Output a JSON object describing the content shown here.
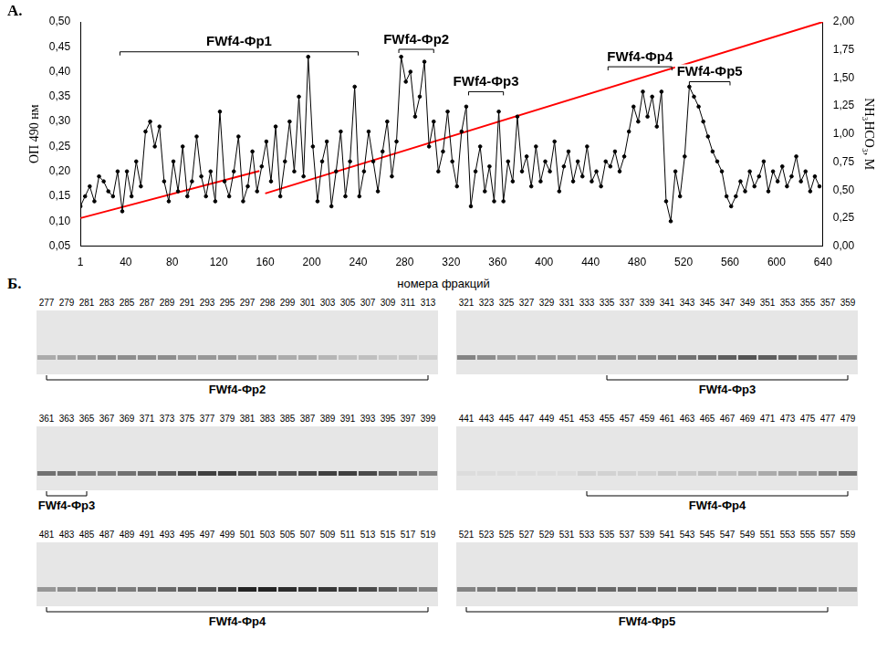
{
  "chart_data": {
    "type": "line",
    "letter": "А.",
    "grid": false,
    "tick_labels": true,
    "y_label": "ОП 490 нм",
    "y2_label": "NH₃HCO₃, М",
    "xlim": [
      1,
      640
    ],
    "xticks": [
      1,
      40,
      80,
      120,
      160,
      200,
      240,
      280,
      320,
      360,
      400,
      440,
      480,
      520,
      560,
      600,
      640
    ],
    "ylim": [
      0.05,
      0.5
    ],
    "yticks": [
      {
        "value": 0.05,
        "label": "0,05"
      },
      {
        "value": 0.1,
        "label": "0,10"
      },
      {
        "value": 0.15,
        "label": "0,15"
      },
      {
        "value": 0.2,
        "label": "0,20"
      },
      {
        "value": 0.25,
        "label": "0,25"
      },
      {
        "value": 0.3,
        "label": "0,30"
      },
      {
        "value": 0.35,
        "label": "0,35"
      },
      {
        "value": 0.4,
        "label": "0,40"
      },
      {
        "value": 0.45,
        "label": "0,45"
      },
      {
        "value": 0.5,
        "label": "0,50"
      }
    ],
    "y2lim": [
      0,
      2
    ],
    "y2ticks": [
      {
        "value": 0,
        "label": "0,00"
      },
      {
        "value": 0.25,
        "label": "0,25"
      },
      {
        "value": 0.5,
        "label": "0,50"
      },
      {
        "value": 0.75,
        "label": "0,75"
      },
      {
        "value": 1,
        "label": "1,00"
      },
      {
        "value": 1.25,
        "label": "1,25"
      },
      {
        "value": 1.5,
        "label": "1,50"
      },
      {
        "value": 1.75,
        "label": "1,75"
      },
      {
        "value": 2,
        "label": "2,00"
      }
    ],
    "series": [
      {
        "color": "#000000",
        "marker": "circle",
        "line_style": "solid",
        "x": [
          1,
          5,
          9,
          13,
          17,
          21,
          25,
          29,
          33,
          37,
          41,
          45,
          49,
          53,
          57,
          61,
          65,
          69,
          73,
          77,
          81,
          85,
          89,
          93,
          97,
          101,
          105,
          109,
          113,
          117,
          121,
          125,
          129,
          133,
          137,
          141,
          145,
          149,
          153,
          157,
          161,
          165,
          169,
          173,
          177,
          181,
          185,
          189,
          193,
          197,
          201,
          205,
          209,
          213,
          217,
          221,
          225,
          229,
          233,
          237,
          241,
          245,
          249,
          253,
          257,
          261,
          265,
          269,
          273,
          277,
          281,
          285,
          289,
          293,
          297,
          301,
          305,
          309,
          313,
          317,
          321,
          325,
          329,
          333,
          337,
          341,
          345,
          349,
          353,
          357,
          361,
          365,
          369,
          373,
          377,
          381,
          385,
          389,
          393,
          397,
          401,
          405,
          409,
          413,
          417,
          421,
          425,
          429,
          433,
          437,
          441,
          445,
          449,
          453,
          457,
          461,
          465,
          469,
          473,
          477,
          481,
          485,
          489,
          493,
          497,
          501,
          505,
          509,
          513,
          517,
          521,
          525,
          529,
          533,
          537,
          541,
          545,
          549,
          553,
          557,
          561,
          565,
          569,
          573,
          577,
          581,
          585,
          589,
          593,
          597,
          601,
          605,
          609,
          613,
          617,
          621,
          625,
          629,
          633,
          637
        ],
        "values": [
          0.13,
          0.15,
          0.17,
          0.14,
          0.19,
          0.18,
          0.16,
          0.15,
          0.2,
          0.12,
          0.2,
          0.15,
          0.22,
          0.17,
          0.28,
          0.3,
          0.25,
          0.29,
          0.18,
          0.14,
          0.22,
          0.16,
          0.25,
          0.15,
          0.18,
          0.27,
          0.19,
          0.15,
          0.2,
          0.14,
          0.32,
          0.18,
          0.15,
          0.2,
          0.27,
          0.14,
          0.17,
          0.24,
          0.16,
          0.21,
          0.26,
          0.18,
          0.29,
          0.15,
          0.22,
          0.3,
          0.2,
          0.35,
          0.19,
          0.43,
          0.25,
          0.14,
          0.22,
          0.26,
          0.13,
          0.2,
          0.28,
          0.15,
          0.22,
          0.37,
          0.15,
          0.2,
          0.28,
          0.22,
          0.16,
          0.24,
          0.3,
          0.19,
          0.26,
          0.43,
          0.38,
          0.4,
          0.31,
          0.35,
          0.42,
          0.25,
          0.3,
          0.2,
          0.24,
          0.32,
          0.22,
          0.17,
          0.28,
          0.33,
          0.13,
          0.2,
          0.25,
          0.16,
          0.21,
          0.14,
          0.32,
          0.14,
          0.22,
          0.18,
          0.31,
          0.2,
          0.23,
          0.17,
          0.25,
          0.18,
          0.22,
          0.2,
          0.26,
          0.16,
          0.21,
          0.24,
          0.18,
          0.22,
          0.19,
          0.25,
          0.18,
          0.2,
          0.17,
          0.22,
          0.21,
          0.24,
          0.2,
          0.23,
          0.28,
          0.33,
          0.3,
          0.36,
          0.31,
          0.35,
          0.29,
          0.36,
          0.14,
          0.1,
          0.2,
          0.15,
          0.23,
          0.37,
          0.35,
          0.33,
          0.3,
          0.27,
          0.24,
          0.22,
          0.2,
          0.15,
          0.13,
          0.15,
          0.18,
          0.16,
          0.2,
          0.17,
          0.19,
          0.22,
          0.16,
          0.2,
          0.18,
          0.21,
          0.17,
          0.19,
          0.23,
          0.18,
          0.2,
          0.16,
          0.19,
          0.17
        ]
      },
      {
        "color": "#ff0000",
        "marker": "none",
        "line_style": "solid",
        "axis": "y2",
        "x": [
          1,
          155,
          157,
          160,
          640
        ],
        "values": [
          0.25,
          0.67,
          null,
          0.47,
          2.0
        ]
      }
    ],
    "annotations": [
      {
        "text": "FWf4-Фр1",
        "x": [
          35,
          240
        ],
        "y": 0.44
      },
      {
        "text": "FWf4-Фр2",
        "x": [
          275,
          305
        ],
        "y": 0.445
      },
      {
        "text": "FWf4-Фр3",
        "x": [
          335,
          365
        ],
        "y": 0.36
      },
      {
        "text": "FWf4-Фр4",
        "x": [
          455,
          510
        ],
        "y": 0.41
      },
      {
        "text": "FWf4-Фр5",
        "x": [
          525,
          560
        ],
        "y": 0.38
      }
    ]
  },
  "panel_b": {
    "letter": "Б.",
    "title": "номера фракций",
    "gels": [
      {
        "lanes": [
          277,
          279,
          281,
          283,
          285,
          287,
          289,
          291,
          293,
          295,
          297,
          298,
          299,
          301,
          303,
          305,
          307,
          309,
          311,
          313
        ],
        "intensity": [
          0.3,
          0.35,
          0.4,
          0.45,
          0.45,
          0.45,
          0.45,
          0.4,
          0.4,
          0.4,
          0.35,
          0.35,
          0.3,
          0.3,
          0.25,
          0.2,
          0.2,
          0.15,
          0.15,
          0.12
        ],
        "brackets": [
          {
            "label": "FWf4-Фр2",
            "from": 277,
            "to": 313
          }
        ]
      },
      {
        "lanes": [
          321,
          323,
          325,
          327,
          329,
          331,
          333,
          335,
          337,
          339,
          341,
          343,
          345,
          347,
          349,
          351,
          353,
          355,
          357,
          359
        ],
        "intensity": [
          0.5,
          0.45,
          0.4,
          0.4,
          0.4,
          0.4,
          0.4,
          0.45,
          0.45,
          0.5,
          0.55,
          0.6,
          0.65,
          0.7,
          0.75,
          0.7,
          0.65,
          0.6,
          0.55,
          0.5
        ],
        "brackets": [
          {
            "label": "FWf4-Фр3",
            "from": 335,
            "to": 359
          }
        ]
      },
      {
        "lanes": [
          361,
          363,
          365,
          367,
          369,
          371,
          373,
          375,
          377,
          379,
          381,
          383,
          385,
          387,
          389,
          391,
          393,
          395,
          397,
          399
        ],
        "intensity": [
          0.6,
          0.6,
          0.55,
          0.55,
          0.6,
          0.65,
          0.7,
          0.8,
          0.85,
          0.85,
          0.8,
          0.75,
          0.75,
          0.8,
          0.85,
          0.85,
          0.8,
          0.7,
          0.6,
          0.5
        ],
        "brackets": [
          {
            "label": "FWf4-Фр3",
            "from": 361,
            "to": 365
          }
        ]
      },
      {
        "lanes": [
          441,
          443,
          445,
          447,
          449,
          451,
          453,
          455,
          457,
          459,
          461,
          463,
          465,
          467,
          469,
          471,
          473,
          475,
          477,
          479
        ],
        "intensity": [
          0.05,
          0.05,
          0.05,
          0.05,
          0.05,
          0.05,
          0.1,
          0.1,
          0.1,
          0.1,
          0.15,
          0.15,
          0.2,
          0.2,
          0.25,
          0.3,
          0.35,
          0.4,
          0.5,
          0.6
        ],
        "brackets": [
          {
            "label": "FWf4-Фр4",
            "from": 453,
            "to": 479
          }
        ]
      },
      {
        "lanes": [
          481,
          483,
          485,
          487,
          489,
          491,
          493,
          495,
          497,
          499,
          501,
          503,
          505,
          507,
          509,
          511,
          513,
          515,
          517,
          519
        ],
        "intensity": [
          0.4,
          0.45,
          0.5,
          0.55,
          0.55,
          0.6,
          0.65,
          0.7,
          0.75,
          0.85,
          1.0,
          1.0,
          0.95,
          0.9,
          0.9,
          0.85,
          0.8,
          0.7,
          0.6,
          0.5
        ],
        "brackets": [
          {
            "label": "FWf4-Фр4",
            "from": 481,
            "to": 519
          }
        ]
      },
      {
        "lanes": [
          521,
          523,
          525,
          527,
          529,
          531,
          533,
          535,
          537,
          539,
          541,
          543,
          545,
          547,
          549,
          551,
          553,
          555,
          557,
          559
        ],
        "intensity": [
          0.5,
          0.55,
          0.6,
          0.6,
          0.6,
          0.65,
          0.65,
          0.65,
          0.65,
          0.65,
          0.65,
          0.65,
          0.65,
          0.6,
          0.6,
          0.6,
          0.55,
          0.55,
          0.5,
          0.45
        ],
        "brackets": [
          {
            "label": "FWf4-Фр5",
            "from": 521,
            "to": 557
          }
        ]
      }
    ]
  }
}
